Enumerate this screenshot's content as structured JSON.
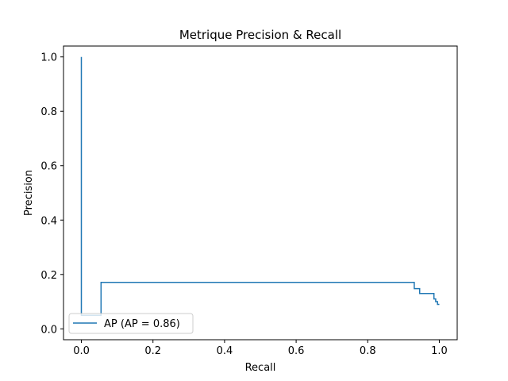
{
  "chart_data": {
    "type": "line",
    "title": "Metrique Precision & Recall",
    "xlabel": "Recall",
    "ylabel": "Precision",
    "xlim": [
      -0.05,
      1.05
    ],
    "ylim": [
      -0.04,
      1.04
    ],
    "xticks": [
      0.0,
      0.2,
      0.4,
      0.6,
      0.8,
      1.0
    ],
    "xtick_labels": [
      "0.0",
      "0.2",
      "0.4",
      "0.6",
      "0.8",
      "1.0"
    ],
    "yticks": [
      0.0,
      0.2,
      0.4,
      0.6,
      0.8,
      1.0
    ],
    "ytick_labels": [
      "0.0",
      "0.2",
      "0.4",
      "0.6",
      "0.8",
      "1.0"
    ],
    "grid": false,
    "legend_position": "lower-left",
    "series": [
      {
        "name": "AP (AP = 0.86)",
        "color": "#1f77b4",
        "step": "post",
        "x": [
          0.0,
          0.0,
          0.0,
          0.055,
          0.055,
          0.93,
          0.93,
          0.945,
          0.945,
          0.985,
          0.985,
          0.99,
          0.99,
          0.995,
          0.995,
          1.0
        ],
        "y": [
          1.0,
          0.05,
          0.05,
          0.05,
          0.171,
          0.171,
          0.148,
          0.148,
          0.13,
          0.13,
          0.11,
          0.11,
          0.1,
          0.1,
          0.09,
          0.09
        ]
      }
    ]
  }
}
